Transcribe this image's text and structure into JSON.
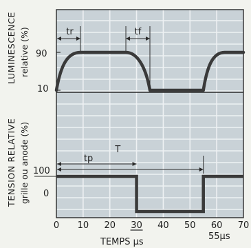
{
  "chart_data": [
    {
      "type": "line",
      "panel": "luminance",
      "ylabel_line1": "LUMINESCENCE",
      "ylabel_line2": "relative (%)",
      "y_ticks": [
        "90",
        "10"
      ],
      "ylim": [
        10,
        90
      ],
      "annotations": {
        "rise": "tr",
        "fall": "tf"
      },
      "series": [
        {
          "x": [
            0,
            9,
            26,
            35,
            55,
            63,
            70
          ],
          "y": [
            10,
            90,
            90,
            10,
            10,
            90,
            90
          ]
        }
      ]
    },
    {
      "type": "line",
      "panel": "voltage",
      "ylabel_line1": "TENSION RELATIVE",
      "ylabel_line2": "grille ou anode (%)",
      "y_ticks": [
        "100",
        "0"
      ],
      "ylim": [
        -60,
        100
      ],
      "annotations": {
        "pulse_width": "tp",
        "period": "T",
        "period_end": "55µs"
      },
      "series": [
        {
          "x": [
            0,
            30,
            30,
            55,
            55,
            70
          ],
          "y": [
            100,
            100,
            -60,
            -60,
            100,
            100
          ]
        }
      ]
    }
  ],
  "x_axis": {
    "label": "TEMPS µs",
    "ticks": [
      0,
      10,
      20,
      30,
      40,
      50,
      60,
      70
    ],
    "xlim": [
      0,
      70
    ]
  },
  "colors": {
    "plot_bg": "#c9d2d7",
    "grid": "#eef1f3",
    "line": "#3a3a3a",
    "frame": "#2b2b2b",
    "page_bg": "#f2f3ee"
  }
}
